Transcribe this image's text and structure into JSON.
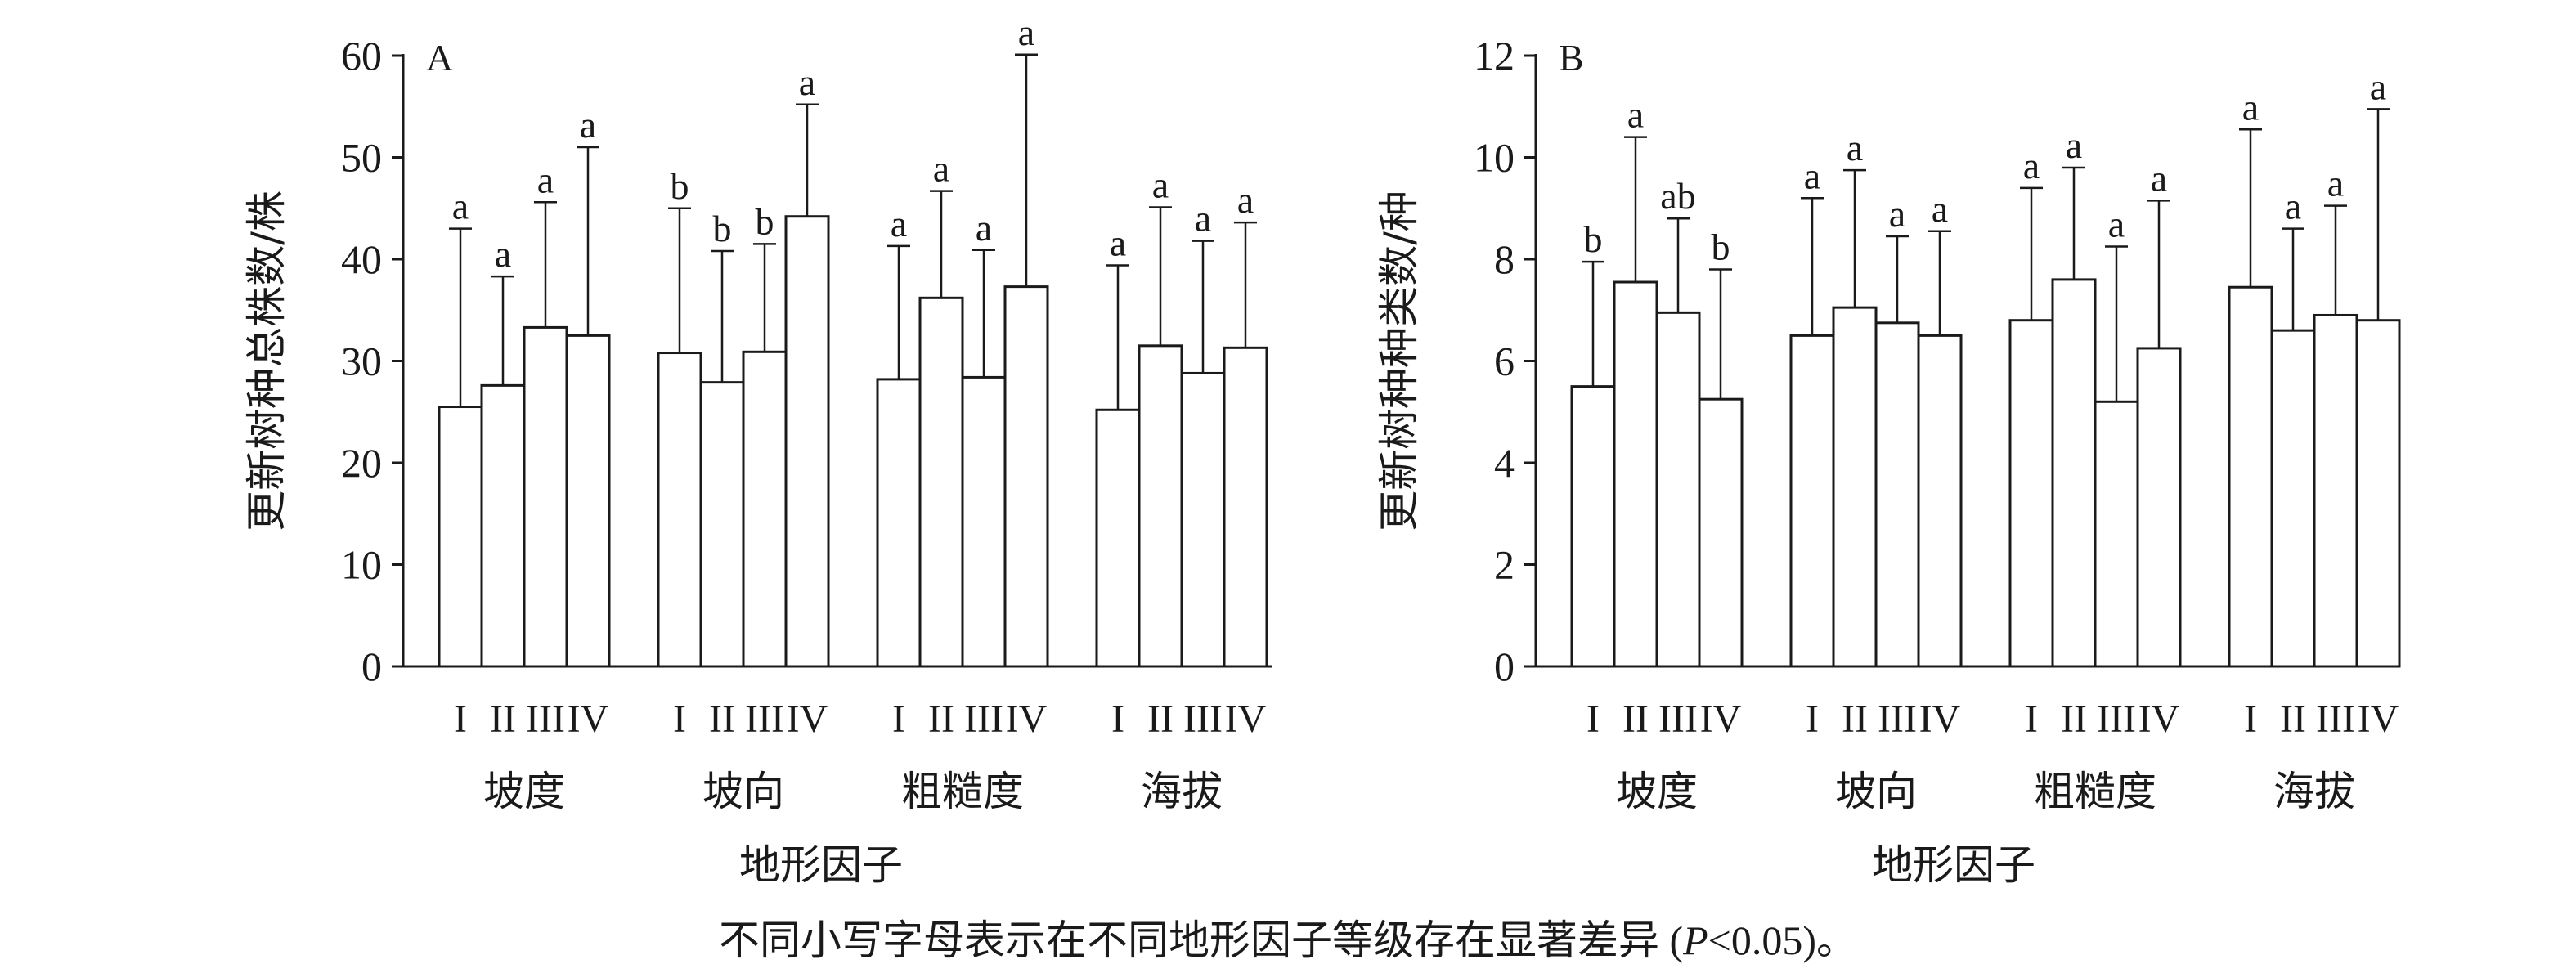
{
  "caption": {
    "prefix": "不同小写字母表示在不同地形因子等级存在显著差异 (",
    "p_symbol": "P",
    "suffix": "<0.05)。"
  },
  "chart_data": [
    {
      "type": "bar",
      "panel_label": "A",
      "ylabel": "更新树种总株数/株",
      "xlabel": "地形因子",
      "ylim": [
        0,
        60
      ],
      "yticks": [
        0,
        10,
        20,
        30,
        40,
        50,
        60
      ],
      "grid": false,
      "legend": "none",
      "level_labels": [
        "I",
        "II",
        "III",
        "IV"
      ],
      "groups": [
        {
          "name": "坡度",
          "values": [
            25.5,
            27.6,
            33.3,
            32.5
          ],
          "err_upper": [
            43.0,
            38.3,
            45.6,
            51.0
          ],
          "letters": [
            "a",
            "a",
            "a",
            "a"
          ]
        },
        {
          "name": "坡向",
          "values": [
            30.8,
            27.9,
            30.9,
            44.2
          ],
          "err_upper": [
            45.0,
            40.8,
            41.5,
            55.2
          ],
          "letters": [
            "b",
            "b",
            "b",
            "a"
          ]
        },
        {
          "name": "粗糙度",
          "values": [
            28.2,
            36.2,
            28.4,
            37.3
          ],
          "err_upper": [
            41.3,
            46.7,
            40.9,
            60.1
          ],
          "letters": [
            "a",
            "a",
            "a",
            "a"
          ]
        },
        {
          "name": "海拔",
          "values": [
            25.2,
            31.5,
            28.8,
            31.3
          ],
          "err_upper": [
            39.4,
            45.1,
            41.8,
            43.6
          ],
          "letters": [
            "a",
            "a",
            "a",
            "a"
          ]
        }
      ]
    },
    {
      "type": "bar",
      "panel_label": "B",
      "ylabel": "更新树种种类数/种",
      "xlabel": "地形因子",
      "ylim": [
        0,
        12
      ],
      "yticks": [
        0,
        2,
        4,
        6,
        8,
        10,
        12
      ],
      "grid": false,
      "legend": "none",
      "level_labels": [
        "I",
        "II",
        "III",
        "IV"
      ],
      "groups": [
        {
          "name": "坡度",
          "values": [
            5.5,
            7.55,
            6.95,
            5.25
          ],
          "err_upper": [
            7.95,
            10.4,
            8.8,
            7.8
          ],
          "letters": [
            "b",
            "a",
            "ab",
            "b"
          ]
        },
        {
          "name": "坡向",
          "values": [
            6.5,
            7.05,
            6.75,
            6.5
          ],
          "err_upper": [
            9.2,
            9.75,
            8.45,
            8.55
          ],
          "letters": [
            "a",
            "a",
            "a",
            "a"
          ]
        },
        {
          "name": "粗糙度",
          "values": [
            6.8,
            7.6,
            5.2,
            6.25
          ],
          "err_upper": [
            9.4,
            9.8,
            8.25,
            9.15
          ],
          "letters": [
            "a",
            "a",
            "a",
            "a"
          ]
        },
        {
          "name": "海拔",
          "values": [
            7.45,
            6.6,
            6.9,
            6.8
          ],
          "err_upper": [
            10.55,
            8.6,
            9.05,
            10.95
          ],
          "letters": [
            "a",
            "a",
            "a",
            "a"
          ]
        }
      ]
    }
  ]
}
